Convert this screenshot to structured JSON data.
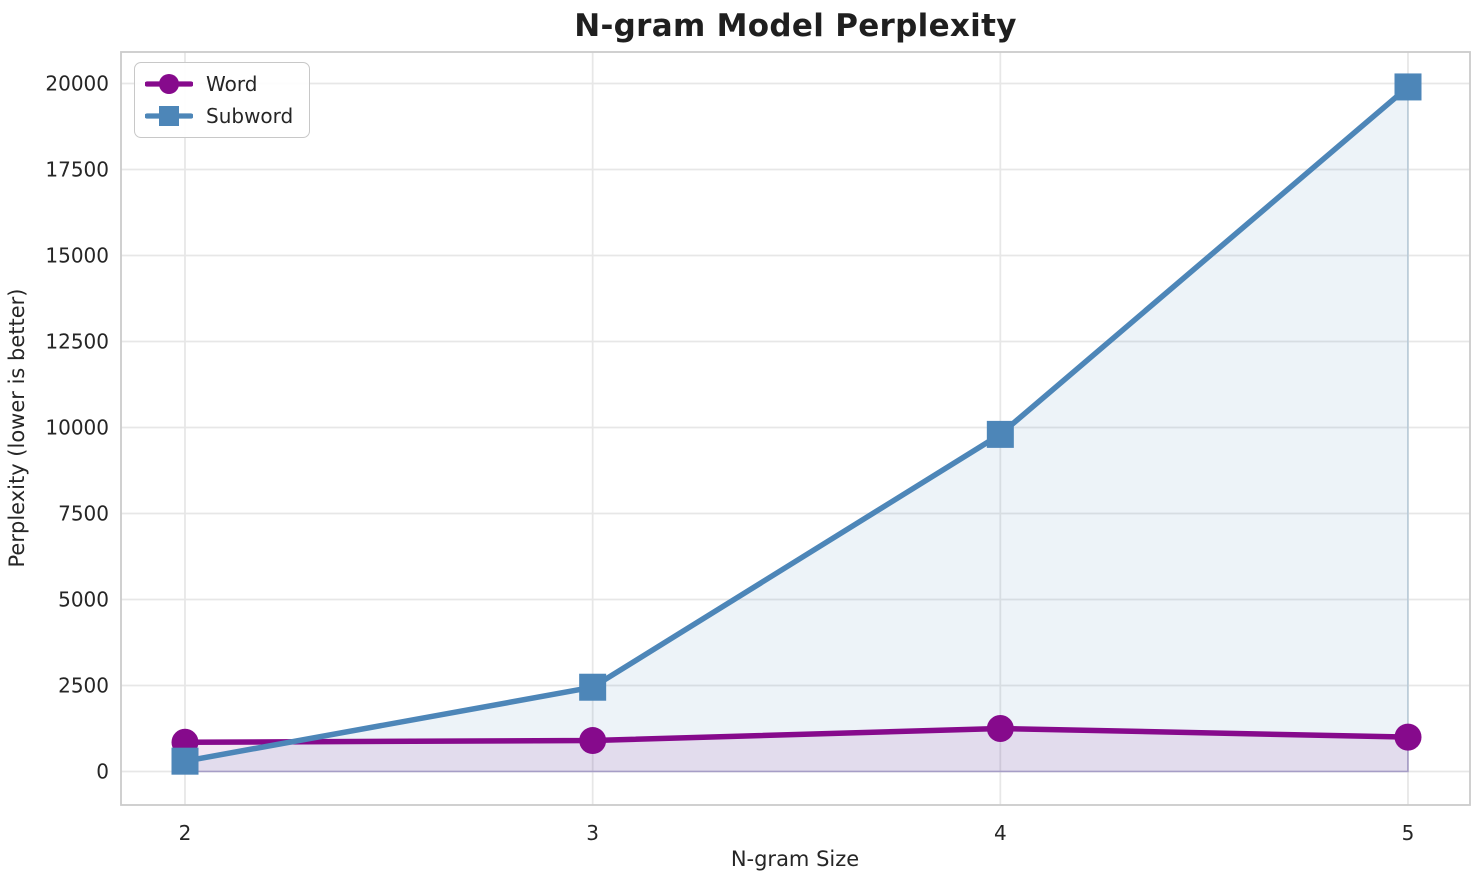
{
  "chart_data": {
    "type": "line",
    "title": "N-gram Model Perplexity",
    "xlabel": "N-gram Size",
    "ylabel": "Perplexity (lower is better)",
    "categories": [
      2,
      3,
      4,
      5
    ],
    "x_tick_labels": [
      "2",
      "3",
      "4",
      "5"
    ],
    "y_ticks": [
      0,
      2500,
      5000,
      7500,
      10000,
      12500,
      15000,
      17500,
      20000
    ],
    "y_tick_labels": [
      "0",
      "2500",
      "5000",
      "7500",
      "10000",
      "12500",
      "15000",
      "17500",
      "20000"
    ],
    "ylim": [
      -975,
      20920
    ],
    "grid": true,
    "legend_position": "upper-left",
    "area_fill_to_zero": true,
    "series": [
      {
        "name": "Word",
        "marker": "circle",
        "color": "#860A8C",
        "fill_alpha": 0.1,
        "values": [
          850,
          900,
          1250,
          1000
        ]
      },
      {
        "name": "Subword",
        "marker": "square",
        "color": "#4D86B8",
        "fill_alpha": 0.1,
        "values": [
          300,
          2450,
          9800,
          19900
        ]
      }
    ]
  },
  "colors": {
    "grid": "#e7e7e7",
    "spine": "#cbcbcb",
    "text": "#262626",
    "background": "#ffffff"
  }
}
